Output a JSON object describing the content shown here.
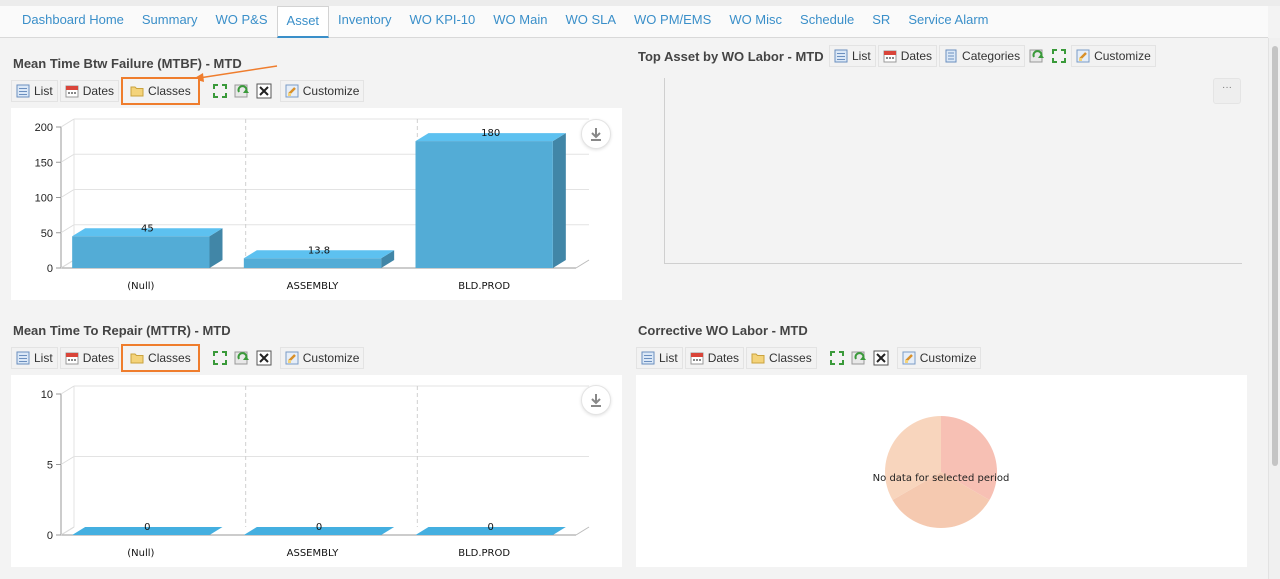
{
  "tabs": [
    {
      "label": "Dashboard Home"
    },
    {
      "label": "Summary"
    },
    {
      "label": "WO P&S"
    },
    {
      "label": "Asset",
      "active": true
    },
    {
      "label": "Inventory"
    },
    {
      "label": "WO KPI-10"
    },
    {
      "label": "WO Main"
    },
    {
      "label": "WO SLA"
    },
    {
      "label": "WO PM/EMS"
    },
    {
      "label": "WO Misc"
    },
    {
      "label": "Schedule"
    },
    {
      "label": "SR"
    },
    {
      "label": "Service Alarm"
    }
  ],
  "panels": {
    "mtbf": {
      "title": "Mean Time Btw Failure (MTBF) - MTD",
      "toolbar": {
        "list": "List",
        "dates": "Dates",
        "classes": "Classes",
        "customize": "Customize"
      }
    },
    "top_asset": {
      "title": "Top Asset by WO Labor - MTD",
      "toolbar": {
        "list": "List",
        "dates": "Dates",
        "categories": "Categories",
        "customize": "Customize"
      },
      "more_label": "···"
    },
    "mttr": {
      "title": "Mean Time To Repair (MTTR) - MTD",
      "toolbar": {
        "list": "List",
        "dates": "Dates",
        "classes": "Classes",
        "customize": "Customize"
      }
    },
    "corrective": {
      "title": "Corrective WO Labor - MTD",
      "toolbar": {
        "list": "List",
        "dates": "Dates",
        "classes": "Classes",
        "customize": "Customize"
      },
      "no_data": "No data for selected period"
    }
  },
  "chart_data": [
    {
      "type": "bar",
      "categories": [
        "(Null)",
        "ASSEMBLY",
        "BLD.PROD"
      ],
      "values": [
        45,
        13.8,
        180
      ],
      "value_labels": [
        "45",
        "13.8",
        "180"
      ],
      "yticks": [
        "0",
        "50",
        "100",
        "150",
        "200"
      ],
      "ylim": [
        0,
        200
      ],
      "color": "#53acd6"
    },
    {
      "type": "bar",
      "categories": [
        "(Null)",
        "ASSEMBLY",
        "BLD.PROD"
      ],
      "values": [
        0,
        0,
        0
      ],
      "value_labels": [
        "0",
        "0",
        "0"
      ],
      "yticks": [
        "0",
        "5",
        "10"
      ],
      "ylim": [
        0,
        10
      ],
      "color": "#3d9cc8"
    }
  ],
  "colors": {
    "accent": "#3a8fc9",
    "highlight": "#ef7d2d",
    "pie_a": "#f7c0b4",
    "pie_b": "#f8d5bd",
    "pie_c": "#f5c9b0"
  }
}
